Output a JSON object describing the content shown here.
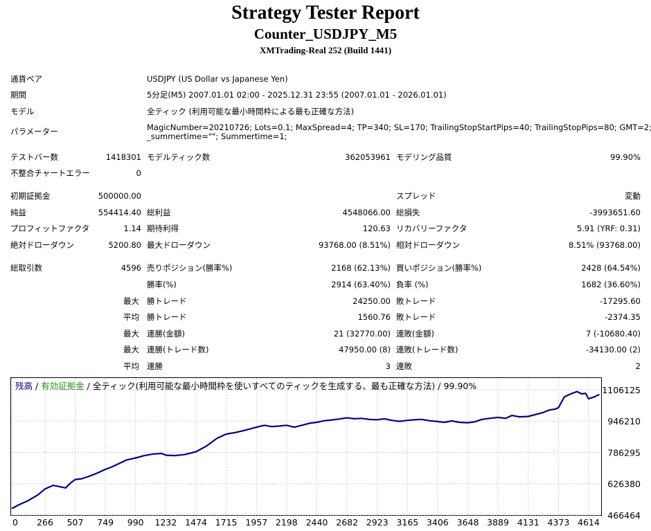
{
  "report": {
    "title": "Strategy Tester Report",
    "expert": "Counter_USDJPY_M5",
    "server": "XMTrading-Real 252 (Build 1441)"
  },
  "settings": {
    "symbol_label": "通貨ペア",
    "symbol": "USDJPY (US Dollar vs Japanese Yen)",
    "period_label": "期間",
    "period": "5分足(M5) 2007.01.01 02:00 - 2025.12.31 23:55 (2007.01.01 - 2026.01.01)",
    "model_label": "モデル",
    "model": "全ティック (利用可能な最小時間枠による最も正確な方法)",
    "params_label": "パラメーター",
    "params_line1": "MagicNumber=20210726; Lots=0.1; MaxSpread=4; TP=340; SL=170; TrailingStopStartPips=40; TrailingStopPips=80; GMT=2;",
    "params_line2": "_summertime=\"\"; Summertime=1;"
  },
  "stats": {
    "bars_label": "テストバー数",
    "bars": "1418301",
    "ticks_label": "モデルティック数",
    "ticks": "362053961",
    "quality_label": "モデリング品質",
    "quality": "99.90%",
    "mismatch_label": "不整合チャートエラー",
    "mismatch": "0",
    "deposit_label": "初期証拠金",
    "deposit": "500000.00",
    "spread_label": "スプレッド",
    "spread": "変動",
    "net_label": "純益",
    "net": "554414.40",
    "gross_profit_label": "総利益",
    "gross_profit": "4548066.00",
    "gross_loss_label": "総損失",
    "gross_loss": "-3993651.60",
    "pf_label": "プロフィットファクタ",
    "pf": "1.14",
    "expected_label": "期待利得",
    "expected": "120.63",
    "recovery_label": "リカバリーファクタ",
    "recovery": "5.91 (YRF: 0.31)",
    "abs_dd_label": "絶対ドローダウン",
    "abs_dd": "5200.80",
    "max_dd_label": "最大ドローダウン",
    "max_dd": "93768.00 (8.51%)",
    "rel_dd_label": "相対ドローダウン",
    "rel_dd": "8.51% (93768.00)",
    "trades_label": "総取引数",
    "trades": "4596",
    "short_label": "売りポジション(勝率%)",
    "short": "2168 (62.13%)",
    "long_label": "買いポジション(勝率%)",
    "long": "2428 (64.54%)",
    "win_rate_label": "勝率(%)",
    "win_rate": "2914 (63.40%)",
    "loss_rate_label": "負率 (%)",
    "loss_rate": "1682 (36.60%)",
    "max_label": "最大",
    "avg_label": "平均",
    "win_trade_label": "勝トレード",
    "loss_trade_label": "敗トレード",
    "max_win": "24250.00",
    "max_loss": "-17295.60",
    "avg_win": "1560.76",
    "avg_loss": "-2374.35",
    "cons_win_money_label": "連勝(金額)",
    "cons_win_money": "21 (32770.00)",
    "cons_loss_money_label": "連敗(金額)",
    "cons_loss_money": "7 (-10680.40)",
    "cons_profit_label": "連勝(トレード数)",
    "cons_profit": "47950.00 (8)",
    "cons_loss_label": "連敗(トレード数)",
    "cons_loss": "-34130.00 (2)",
    "avg_cons_win_label": "連勝",
    "avg_cons_win": "3",
    "avg_cons_loss_label": "連敗",
    "avg_cons_loss": "2"
  },
  "chart_legend": {
    "balance": "残高",
    "sep1": " / ",
    "equity": "有効証拠金",
    "sep2": " / ",
    "model": "全ティック(利用可能な最小時間枠を使いすべてのティックを生成する、最も正確な方法)",
    "sep3": " / ",
    "quality": "99.90%",
    "balance_color": "#000080",
    "equity_color": "#2e8b22",
    "line_color": "#00008b"
  },
  "chart_data": {
    "type": "line",
    "x_ticks": [
      0,
      266,
      507,
      749,
      990,
      1232,
      1474,
      1715,
      1957,
      2198,
      2440,
      2682,
      2923,
      3165,
      3406,
      3648,
      3889,
      4131,
      4373,
      4614
    ],
    "y_ticks": [
      1106125,
      946210,
      786295,
      626380,
      466464
    ],
    "xlim": [
      0,
      4714
    ],
    "ylim": [
      466464,
      1106125
    ],
    "series": [
      {
        "name": "残高",
        "x": [
          0,
          60,
          130,
          210,
          266,
          330,
          380,
          430,
          470,
          507,
          560,
          620,
          680,
          749,
          800,
          860,
          920,
          990,
          1060,
          1130,
          1200,
          1232,
          1300,
          1380,
          1474,
          1560,
          1640,
          1715,
          1790,
          1870,
          1957,
          2020,
          2080,
          2140,
          2198,
          2260,
          2320,
          2380,
          2440,
          2500,
          2560,
          2620,
          2682,
          2740,
          2800,
          2860,
          2923,
          2980,
          3040,
          3100,
          3165,
          3220,
          3280,
          3340,
          3406,
          3460,
          3520,
          3580,
          3648,
          3700,
          3760,
          3820,
          3889,
          3950,
          4000,
          4060,
          4131,
          4190,
          4250,
          4300,
          4350,
          4373,
          4420,
          4470,
          4520,
          4560,
          4590,
          4614,
          4660,
          4700
        ],
        "y": [
          500000,
          520000,
          540000,
          570000,
          600000,
          618000,
          612000,
          605000,
          630000,
          648000,
          652000,
          665000,
          680000,
          700000,
          712000,
          730000,
          748000,
          758000,
          770000,
          778000,
          781000,
          772000,
          770000,
          775000,
          790000,
          820000,
          858000,
          880000,
          888000,
          900000,
          915000,
          925000,
          918000,
          921000,
          925000,
          915000,
          925000,
          935000,
          940000,
          948000,
          952000,
          957000,
          963000,
          958000,
          960000,
          955000,
          953000,
          958000,
          950000,
          945000,
          950000,
          953000,
          955000,
          948000,
          944000,
          940000,
          947000,
          940000,
          938000,
          942000,
          955000,
          960000,
          965000,
          960000,
          975000,
          968000,
          970000,
          980000,
          990000,
          1003000,
          1008000,
          1015000,
          1070000,
          1085000,
          1097000,
          1085000,
          1088000,
          1060000,
          1070000,
          1082000
        ]
      }
    ]
  }
}
